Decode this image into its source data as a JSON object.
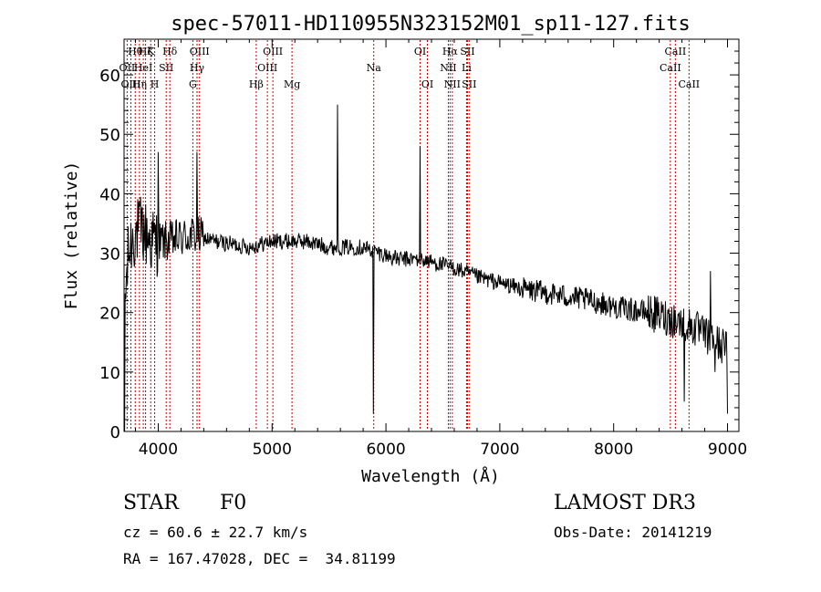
{
  "chart_data": {
    "type": "line",
    "title": "spec-57011-HD110955N323152M01_sp11-127.fits",
    "xlabel": "Wavelength (Å)",
    "ylabel": "Flux (relative)",
    "xlim": [
      3700,
      9100
    ],
    "ylim": [
      0,
      66
    ],
    "x_ticks": [
      4000,
      5000,
      6000,
      7000,
      8000,
      9000
    ],
    "y_ticks": [
      0,
      10,
      20,
      30,
      40,
      50,
      60
    ],
    "series": [
      {
        "name": "flux",
        "color": "#000000",
        "anchors": {
          "x": [
            3700,
            3740,
            3780,
            3850,
            3950,
            4100,
            4300,
            4500,
            4800,
            5000,
            5300,
            5500,
            5800,
            6100,
            6300,
            6600,
            6800,
            7000,
            7200,
            7500,
            7800,
            8000,
            8300,
            8500,
            8700,
            8900,
            9000
          ],
          "y": [
            20,
            30,
            33,
            34,
            32,
            32,
            33,
            32,
            31,
            32,
            32,
            31,
            31,
            29,
            29,
            27.5,
            26,
            25,
            24,
            23,
            22,
            21,
            20,
            19,
            17.5,
            15,
            14
          ]
        },
        "features": [
          {
            "x": 3705,
            "y": 0
          },
          {
            "x": 4000,
            "y": 47
          },
          {
            "x": 4340,
            "y": 47
          },
          {
            "x": 5577,
            "y": 55
          },
          {
            "x": 5890,
            "y": 3
          },
          {
            "x": 6300,
            "y": 48
          },
          {
            "x": 8620,
            "y": 5
          },
          {
            "x": 8850,
            "y": 27
          },
          {
            "x": 8890,
            "y": 10
          },
          {
            "x": 9000,
            "y": 3
          }
        ]
      }
    ],
    "line_markers": [
      {
        "x": 3727,
        "labels": [
          "OII"
        ],
        "row": 1
      },
      {
        "x": 3760,
        "labels": [
          "OIII"
        ],
        "row": 2
      },
      {
        "x": 3798,
        "labels": [
          "Hθ"
        ],
        "row": 0
      },
      {
        "x": 3835,
        "labels": [
          "Hη"
        ],
        "row": 2
      },
      {
        "x": 3869,
        "labels": [
          "HeI"
        ],
        "row": 1
      },
      {
        "x": 3889,
        "labels": [
          "Hζ"
        ],
        "row": 0
      },
      {
        "x": 3934,
        "labels": [
          "K"
        ],
        "row": 0
      },
      {
        "x": 3969,
        "labels": [
          "H"
        ],
        "row": 2
      },
      {
        "x": 4070,
        "labels": [
          "SII"
        ],
        "row": 1
      },
      {
        "x": 4102,
        "labels": [
          "Hδ"
        ],
        "row": 0
      },
      {
        "x": 4304,
        "labels": [
          "G"
        ],
        "row": 2
      },
      {
        "x": 4341,
        "labels": [
          "Hγ"
        ],
        "row": 1
      },
      {
        "x": 4363,
        "labels": [
          "OIII"
        ],
        "row": 0
      },
      {
        "x": 4861,
        "labels": [
          "Hβ"
        ],
        "row": 2
      },
      {
        "x": 4959,
        "labels": [
          "OIII"
        ],
        "row": 1
      },
      {
        "x": 5007,
        "labels": [
          "OIII"
        ],
        "row": 0
      },
      {
        "x": 5175,
        "labels": [
          "Mg"
        ],
        "row": 2
      },
      {
        "x": 5893,
        "labels": [
          "Na"
        ],
        "row": 1
      },
      {
        "x": 6300,
        "labels": [
          "OI"
        ],
        "row": 0
      },
      {
        "x": 6364,
        "labels": [
          "OI"
        ],
        "row": 2
      },
      {
        "x": 6548,
        "labels": [
          "NII"
        ],
        "row": 1
      },
      {
        "x": 6563,
        "labels": [
          "Hα"
        ],
        "row": 0
      },
      {
        "x": 6583,
        "labels": [
          "NII"
        ],
        "row": 2
      },
      {
        "x": 6708,
        "labels": [
          "Li"
        ],
        "row": 1
      },
      {
        "x": 6716,
        "labels": [
          "SII"
        ],
        "row": 0
      },
      {
        "x": 6731,
        "labels": [
          "SII"
        ],
        "row": 2
      },
      {
        "x": 8498,
        "labels": [
          "CaII"
        ],
        "row": 1
      },
      {
        "x": 8542,
        "labels": [
          "CaII"
        ],
        "row": 0
      },
      {
        "x": 8662,
        "labels": [
          "CaII"
        ],
        "row": 2
      }
    ],
    "marker_color": "#cc0000"
  },
  "info": {
    "class_label": "STAR",
    "subclass": "F0",
    "survey": "LAMOST DR3",
    "redshift": "cz = 60.6 ± 22.7 km/s",
    "obs_date": "Obs-Date: 20141219",
    "coords": "RA = 167.47028, DEC =  34.81199"
  }
}
